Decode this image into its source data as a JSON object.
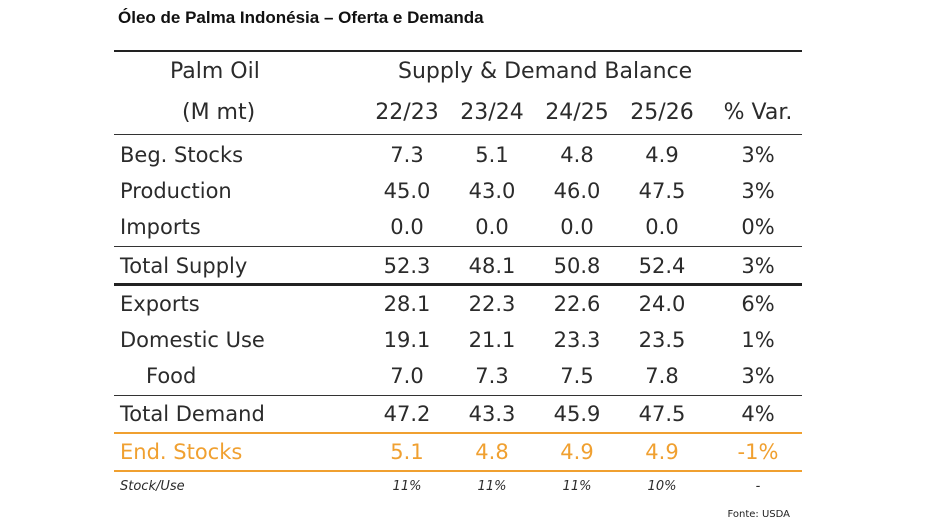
{
  "title": "Óleo de Palma Indonésia – Oferta e Demanda",
  "header": {
    "label_line1": "Palm Oil",
    "label_line2": "(M mt)",
    "group": "Supply & Demand Balance",
    "columns": [
      "22/23",
      "23/24",
      "24/25",
      "25/26",
      "% Var."
    ]
  },
  "rows": [
    {
      "label": "Beg. Stocks",
      "values": [
        "7.3",
        "5.1",
        "4.8",
        "4.9",
        "3%"
      ]
    },
    {
      "label": "Production",
      "values": [
        "45.0",
        "43.0",
        "46.0",
        "47.5",
        "3%"
      ]
    },
    {
      "label": "Imports",
      "values": [
        "0.0",
        "0.0",
        "0.0",
        "0.0",
        "0%"
      ]
    },
    {
      "label": "Total Supply",
      "values": [
        "52.3",
        "48.1",
        "50.8",
        "52.4",
        "3%"
      ]
    },
    {
      "label": "Exports",
      "values": [
        "28.1",
        "22.3",
        "22.6",
        "24.0",
        "6%"
      ]
    },
    {
      "label": "Domestic Use",
      "values": [
        "19.1",
        "21.1",
        "23.3",
        "23.5",
        "1%"
      ]
    },
    {
      "label": "Food",
      "values": [
        "7.0",
        "7.3",
        "7.5",
        "7.8",
        "3%"
      ]
    },
    {
      "label": "Total Demand",
      "values": [
        "47.2",
        "43.3",
        "45.9",
        "47.5",
        "4%"
      ]
    },
    {
      "label": "End. Stocks",
      "values": [
        "5.1",
        "4.8",
        "4.9",
        "4.9",
        "-1%"
      ]
    },
    {
      "label": "Stock/Use",
      "values": [
        "11%",
        "11%",
        "11%",
        "10%",
        "-"
      ]
    }
  ],
  "source": "Fonte: USDA",
  "colors": {
    "highlight": "#f0a030",
    "rule": "#222222"
  }
}
